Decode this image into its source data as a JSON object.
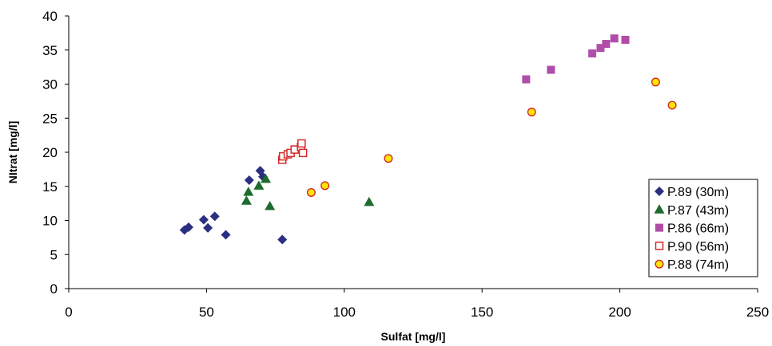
{
  "chart_data": {
    "type": "scatter",
    "xlabel": "Sulfat [mg/l]",
    "ylabel": "NItrat [mg/l]",
    "xlim": [
      0,
      250
    ],
    "ylim": [
      0,
      40
    ],
    "xticks": [
      0,
      50,
      100,
      150,
      200,
      250
    ],
    "yticks": [
      0,
      5,
      10,
      15,
      20,
      25,
      30,
      35,
      40
    ],
    "grid": false,
    "legend_position": "bottom-right",
    "series": [
      {
        "name": "P.89 (30m)",
        "marker": "diamond",
        "color": "#2B2F80",
        "points": [
          {
            "x": 42,
            "y": 8.6
          },
          {
            "x": 43.5,
            "y": 9.0
          },
          {
            "x": 49,
            "y": 10.1
          },
          {
            "x": 50.5,
            "y": 8.9
          },
          {
            "x": 53,
            "y": 10.6
          },
          {
            "x": 57,
            "y": 7.9
          },
          {
            "x": 65.5,
            "y": 15.9
          },
          {
            "x": 69.5,
            "y": 17.3
          },
          {
            "x": 70.5,
            "y": 16.4
          },
          {
            "x": 77.5,
            "y": 7.2
          }
        ]
      },
      {
        "name": "P.87 (43m)",
        "marker": "triangle",
        "color": "#1E6B2E",
        "points": [
          {
            "x": 64.5,
            "y": 12.9
          },
          {
            "x": 65.2,
            "y": 14.2
          },
          {
            "x": 69.0,
            "y": 15.1
          },
          {
            "x": 71.5,
            "y": 16.1
          },
          {
            "x": 73.0,
            "y": 12.1
          },
          {
            "x": 109.0,
            "y": 12.7
          }
        ]
      },
      {
        "name": "P.86 (66m)",
        "marker": "square",
        "color": "#B04DA8",
        "points": [
          {
            "x": 166,
            "y": 30.7
          },
          {
            "x": 175,
            "y": 32.1
          },
          {
            "x": 190,
            "y": 34.5
          },
          {
            "x": 193,
            "y": 35.3
          },
          {
            "x": 195,
            "y": 35.9
          },
          {
            "x": 198,
            "y": 36.7
          },
          {
            "x": 202,
            "y": 36.5
          }
        ]
      },
      {
        "name": "P.90 (56m)",
        "marker": "open-square",
        "color": "#D42A2A",
        "points": [
          {
            "x": 77.5,
            "y": 18.9
          },
          {
            "x": 77.8,
            "y": 19.4
          },
          {
            "x": 79.5,
            "y": 19.7
          },
          {
            "x": 80.5,
            "y": 19.9
          },
          {
            "x": 82.0,
            "y": 20.4
          },
          {
            "x": 84.3,
            "y": 20.8
          },
          {
            "x": 84.5,
            "y": 21.3
          },
          {
            "x": 85.0,
            "y": 19.9
          }
        ]
      },
      {
        "name": "P.88 (74m)",
        "marker": "circle",
        "color": "#FFE600",
        "stroke": "#D42A2A",
        "points": [
          {
            "x": 88,
            "y": 14.1
          },
          {
            "x": 93,
            "y": 15.1
          },
          {
            "x": 116,
            "y": 19.1
          },
          {
            "x": 168,
            "y": 25.9
          },
          {
            "x": 213,
            "y": 30.3
          },
          {
            "x": 219,
            "y": 26.9
          }
        ]
      }
    ]
  }
}
